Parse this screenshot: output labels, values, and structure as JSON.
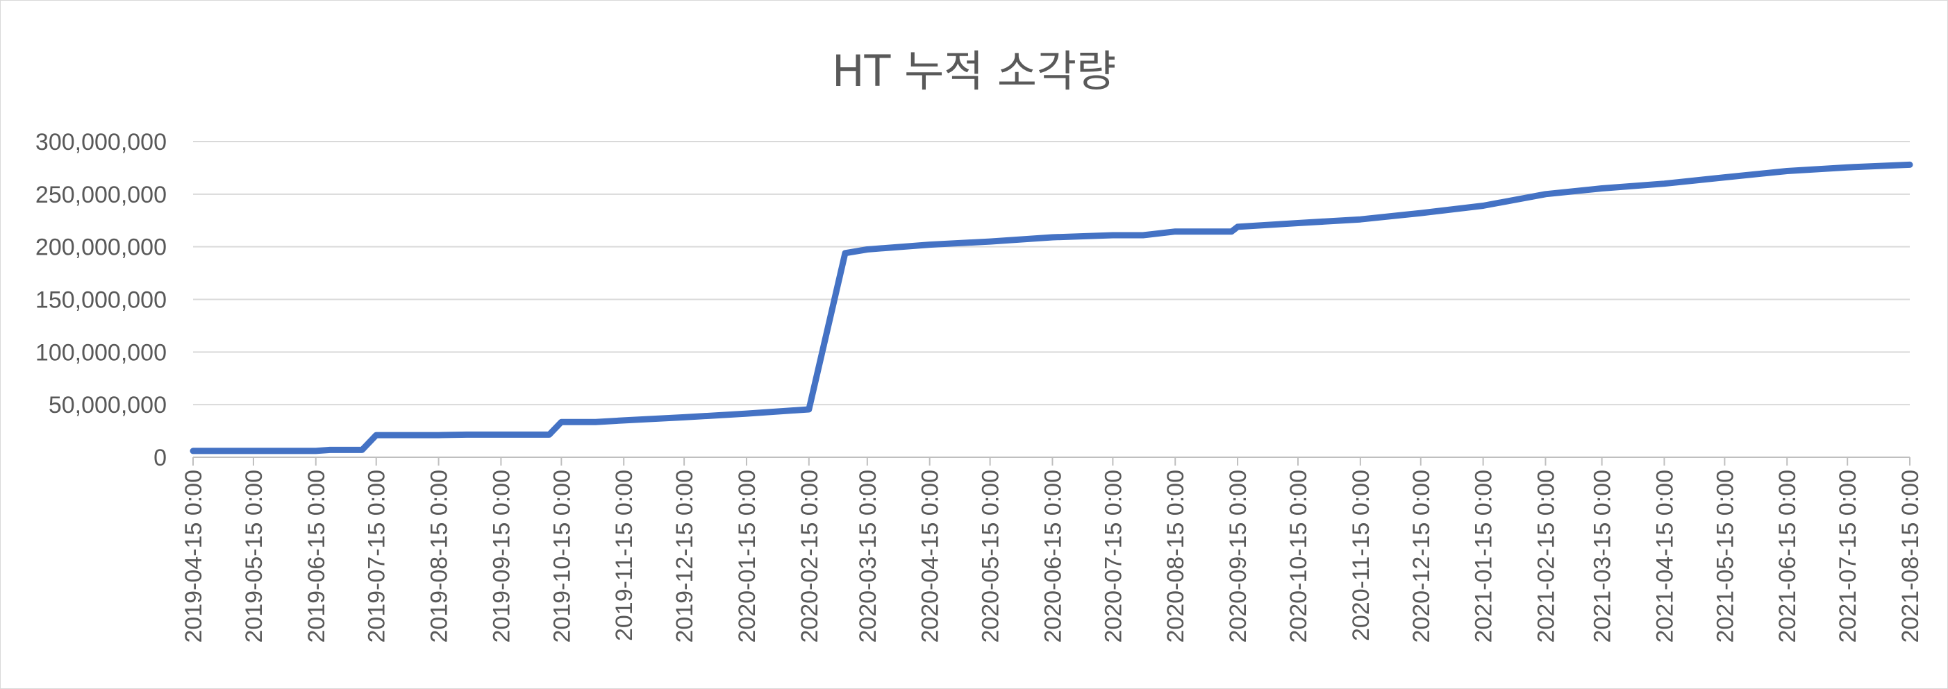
{
  "chart_data": {
    "type": "line",
    "title": "HT 누적 소각량",
    "xlabel": "",
    "ylabel": "",
    "ylim": [
      0,
      300000000
    ],
    "y_ticks": [
      0,
      50000000,
      100000000,
      150000000,
      200000000,
      250000000,
      300000000
    ],
    "y_tick_labels": [
      "0",
      "50,000,000",
      "100,000,000",
      "150,000,000",
      "200,000,000",
      "250,000,000",
      "300,000,000"
    ],
    "x_tick_labels": [
      "2019-04-15 0:00",
      "2019-05-15 0:00",
      "2019-06-15 0:00",
      "2019-07-15 0:00",
      "2019-08-15 0:00",
      "2019-09-15 0:00",
      "2019-10-15 0:00",
      "2019-11-15 0:00",
      "2019-12-15 0:00",
      "2020-01-15 0:00",
      "2020-02-15 0:00",
      "2020-03-15 0:00",
      "2020-04-15 0:00",
      "2020-05-15 0:00",
      "2020-06-15 0:00",
      "2020-07-15 0:00",
      "2020-08-15 0:00",
      "2020-09-15 0:00",
      "2020-10-15 0:00",
      "2020-11-15 0:00",
      "2020-12-15 0:00",
      "2021-01-15 0:00",
      "2021-02-15 0:00",
      "2021-03-15 0:00",
      "2021-04-15 0:00",
      "2021-05-15 0:00",
      "2021-06-15 0:00",
      "2021-07-15 0:00",
      "2021-08-15 0:00"
    ],
    "x_range": [
      "2019-04-15",
      "2021-08-15"
    ],
    "grid": true,
    "series": [
      {
        "color": "#4472c4",
        "x": [
          "2019-04-15",
          "2019-05-15",
          "2019-06-15",
          "2019-06-22",
          "2019-07-08",
          "2019-07-15",
          "2019-08-15",
          "2019-08-29",
          "2019-09-15",
          "2019-10-09",
          "2019-10-15",
          "2019-11-01",
          "2019-11-15",
          "2019-12-15",
          "2020-01-15",
          "2020-02-15",
          "2020-03-04",
          "2020-03-15",
          "2020-04-15",
          "2020-05-15",
          "2020-06-15",
          "2020-07-15",
          "2020-07-30",
          "2020-08-15",
          "2020-09-12",
          "2020-09-15",
          "2020-10-15",
          "2020-11-15",
          "2020-12-15",
          "2021-01-15",
          "2021-02-15",
          "2021-03-15",
          "2021-04-15",
          "2021-05-15",
          "2021-06-15",
          "2021-07-15",
          "2021-08-15"
        ],
        "values": [
          6000000,
          6000000,
          6000000,
          7000000,
          7000000,
          21000000,
          21000000,
          21500000,
          21500000,
          21500000,
          33500000,
          33500000,
          35000000,
          38000000,
          41500000,
          45500000,
          194000000,
          197500000,
          202000000,
          205000000,
          209000000,
          211000000,
          211000000,
          214500000,
          214500000,
          219000000,
          222500000,
          226000000,
          232000000,
          239000000,
          250000000,
          255500000,
          260000000,
          266000000,
          272000000,
          275500000,
          278000000
        ]
      }
    ]
  }
}
